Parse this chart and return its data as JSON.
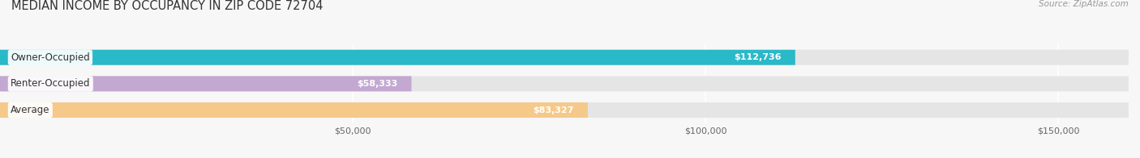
{
  "title": "MEDIAN INCOME BY OCCUPANCY IN ZIP CODE 72704",
  "source": "Source: ZipAtlas.com",
  "categories": [
    "Owner-Occupied",
    "Renter-Occupied",
    "Average"
  ],
  "values": [
    112736,
    58333,
    83327
  ],
  "bar_colors": [
    "#2ab9c8",
    "#c3a8d1",
    "#f5c989"
  ],
  "bar_bg_color": "#e5e5e5",
  "value_labels": [
    "$112,736",
    "$58,333",
    "$83,327"
  ],
  "value_label_color": "white",
  "xlim_max": 160000,
  "xticks": [
    50000,
    100000,
    150000
  ],
  "xticklabels": [
    "$50,000",
    "$100,000",
    "$150,000"
  ],
  "background_color": "#f7f7f7",
  "title_fontsize": 10.5,
  "bar_height": 0.58,
  "bar_gap": 0.18,
  "figsize": [
    14.06,
    1.96
  ],
  "dpi": 100
}
